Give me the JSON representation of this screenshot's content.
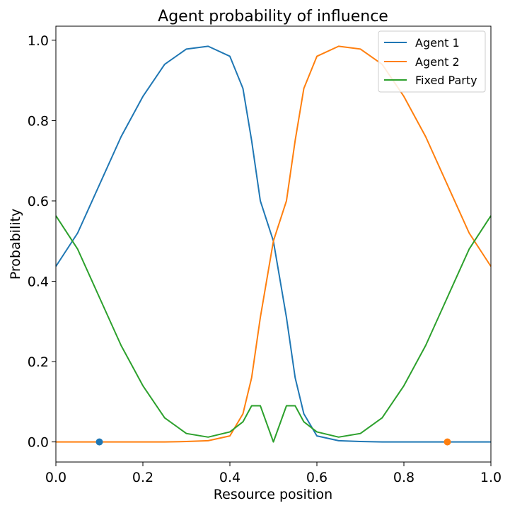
{
  "chart_data": {
    "type": "line",
    "title": "Agent probability of influence",
    "xlabel": "Resource position",
    "ylabel": "Probability",
    "xlim": [
      0.0,
      1.0
    ],
    "ylim": [
      -0.05,
      1.035
    ],
    "xticks": [
      "0.0",
      "0.2",
      "0.4",
      "0.6",
      "0.8",
      "1.0"
    ],
    "yticks": [
      "0.0",
      "0.2",
      "0.4",
      "0.6",
      "0.8",
      "1.0"
    ],
    "grid": false,
    "legend_position": "top-right",
    "x": [
      0.0,
      0.05,
      0.1,
      0.15,
      0.2,
      0.25,
      0.3,
      0.35,
      0.4,
      0.43,
      0.45,
      0.47,
      0.5,
      0.53,
      0.55,
      0.57,
      0.6,
      0.65,
      0.7,
      0.75,
      0.8,
      0.85,
      0.9,
      0.95,
      1.0
    ],
    "series": [
      {
        "name": "Agent 1",
        "color": "#1f77b4",
        "values": [
          0.437,
          0.52,
          0.64,
          0.76,
          0.86,
          0.94,
          0.978,
          0.985,
          0.96,
          0.88,
          0.75,
          0.6,
          0.5,
          0.31,
          0.16,
          0.07,
          0.015,
          0.003,
          0.001,
          0.0,
          0.0,
          0.0,
          0.0,
          0.0,
          0.0
        ]
      },
      {
        "name": "Agent 2",
        "color": "#ff7f0e",
        "values": [
          0.0,
          0.0,
          0.0,
          0.0,
          0.0,
          0.0,
          0.001,
          0.003,
          0.015,
          0.07,
          0.16,
          0.31,
          0.5,
          0.6,
          0.75,
          0.88,
          0.96,
          0.985,
          0.978,
          0.94,
          0.86,
          0.76,
          0.64,
          0.52,
          0.437
        ]
      },
      {
        "name": "Fixed Party",
        "color": "#2ca02c",
        "values": [
          0.563,
          0.48,
          0.36,
          0.24,
          0.14,
          0.06,
          0.021,
          0.012,
          0.025,
          0.05,
          0.09,
          0.09,
          0.0,
          0.09,
          0.09,
          0.05,
          0.025,
          0.012,
          0.021,
          0.06,
          0.14,
          0.24,
          0.36,
          0.48,
          0.563
        ]
      }
    ],
    "points": [
      {
        "x": 0.1,
        "y": 0.0,
        "color": "#1f77b4"
      },
      {
        "x": 0.9,
        "y": 0.0,
        "color": "#ff7f0e"
      }
    ]
  }
}
